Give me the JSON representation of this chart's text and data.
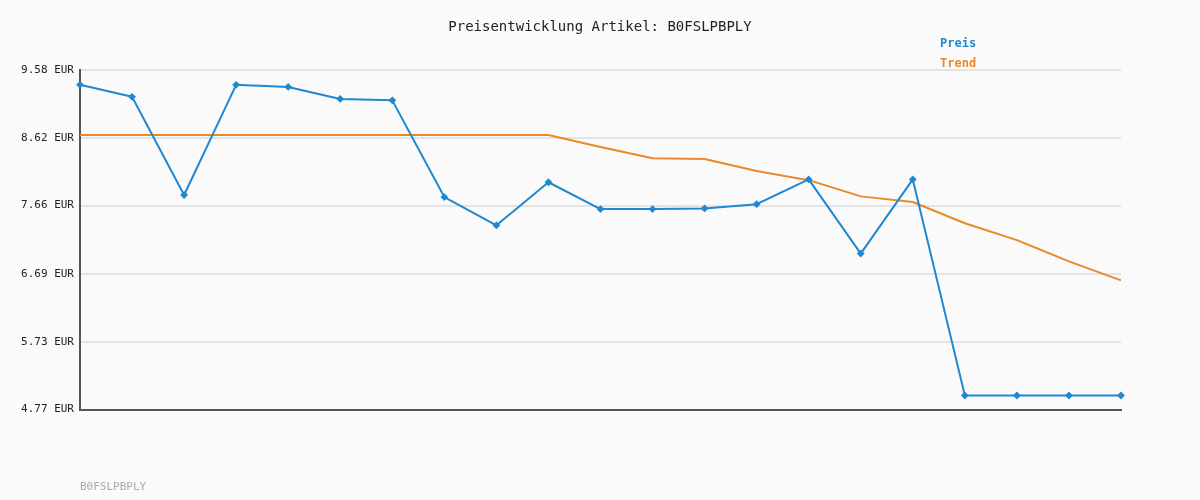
{
  "chart_data": {
    "type": "line",
    "title": "Preisentwicklung Artikel: B0FSLPBPLY",
    "categories": [
      null,
      null,
      null,
      null,
      null,
      null,
      null,
      null,
      null,
      null,
      null,
      null,
      null,
      null,
      null,
      null,
      null,
      null,
      null,
      null,
      null
    ],
    "series": [
      {
        "name": "Preis",
        "color": "#1f88d0",
        "marker": "diamond",
        "values": [
          9.37,
          9.2,
          7.81,
          9.37,
          9.34,
          9.17,
          9.15,
          7.78,
          7.38,
          7.99,
          7.61,
          7.61,
          7.62,
          7.68,
          8.03,
          6.98,
          8.03,
          4.97,
          4.97,
          4.97,
          4.97
        ]
      },
      {
        "name": "Trend",
        "color": "#e8892a",
        "marker": "none",
        "values": [
          8.66,
          8.66,
          8.66,
          8.66,
          8.66,
          8.66,
          8.66,
          8.66,
          8.66,
          8.66,
          8.49,
          8.33,
          8.32,
          8.15,
          8.02,
          7.79,
          7.71,
          7.41,
          7.17,
          6.87,
          6.6
        ]
      }
    ],
    "ylim": [
      4.77,
      9.58
    ],
    "yticks": [
      {
        "value": 4.77,
        "label": "4.77 EUR"
      },
      {
        "value": 5.73,
        "label": "5.73 EUR"
      },
      {
        "value": 6.69,
        "label": "6.69 EUR"
      },
      {
        "value": 7.66,
        "label": "7.66 EUR"
      },
      {
        "value": 8.62,
        "label": "8.62 EUR"
      },
      {
        "value": 9.58,
        "label": "9.58 EUR"
      }
    ],
    "grid": "y",
    "legend": "top right",
    "line_style": "solid",
    "annotations": [
      "B0FSLPBPLY"
    ]
  }
}
